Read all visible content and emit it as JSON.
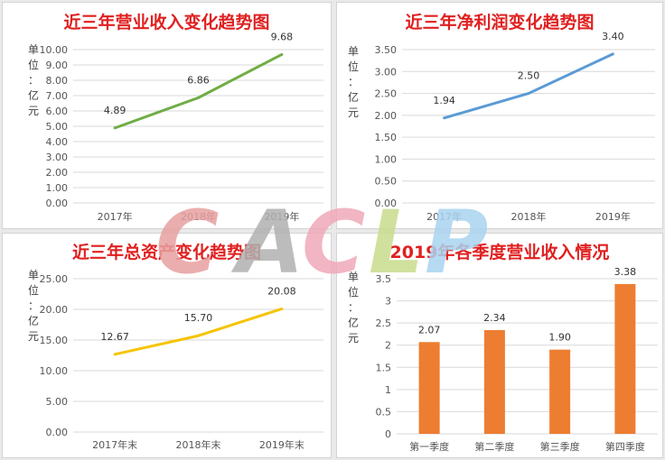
{
  "chart_data": [
    {
      "type": "line",
      "title": "近三年营业收入变化趋势图",
      "ylabel": "单位：亿元",
      "categories": [
        "2017年",
        "2018年",
        "2019年"
      ],
      "values": [
        4.89,
        6.86,
        9.68
      ],
      "value_labels": [
        "4.89",
        "6.86",
        "9.68"
      ],
      "ylim": [
        0,
        10
      ],
      "yticks": [
        "0.00",
        "1.00",
        "2.00",
        "3.00",
        "4.00",
        "5.00",
        "6.00",
        "7.00",
        "8.00",
        "9.00",
        "10.00"
      ],
      "color": "#70ad47",
      "grid": true
    },
    {
      "type": "line",
      "title": "近三年净利润变化趋势图",
      "ylabel": "单位：亿元",
      "categories": [
        "2017年",
        "2018年",
        "2019年"
      ],
      "values": [
        1.94,
        2.5,
        3.4
      ],
      "value_labels": [
        "1.94",
        "2.50",
        "3.40"
      ],
      "ylim": [
        0,
        3.5
      ],
      "yticks": [
        "0.00",
        "0.50",
        "1.00",
        "1.50",
        "2.00",
        "2.50",
        "3.00",
        "3.50"
      ],
      "color": "#5b9bd5",
      "grid": true
    },
    {
      "type": "line",
      "title": "近三年总资产变化趋势图",
      "ylabel": "单位：亿元",
      "categories": [
        "2017年末",
        "2018年末",
        "2019年末"
      ],
      "values": [
        12.67,
        15.7,
        20.08
      ],
      "value_labels": [
        "12.67",
        "15.70",
        "20.08"
      ],
      "ylim": [
        0,
        25
      ],
      "yticks": [
        "0.00",
        "5.00",
        "10.00",
        "15.00",
        "20.00",
        "25.00"
      ],
      "color": "#f5c400",
      "grid": true
    },
    {
      "type": "bar",
      "title": "2019年各季度营业收入情况",
      "ylabel": "单位：亿元",
      "categories": [
        "第一季度",
        "第二季度",
        "第三季度",
        "第四季度"
      ],
      "values": [
        2.07,
        2.34,
        1.9,
        3.38
      ],
      "value_labels": [
        "2.07",
        "2.34",
        "1.90",
        "3.38"
      ],
      "ylim": [
        0,
        3.5
      ],
      "yticks": [
        "0",
        "0.5",
        "1",
        "1.5",
        "2",
        "2.5",
        "3",
        "3.5"
      ],
      "color": "#ed7d31",
      "grid": true
    }
  ],
  "watermark": {
    "letters": [
      "C",
      "A",
      "C",
      "L",
      "P"
    ],
    "colors": [
      "#e8a0a0",
      "#b0b0b0",
      "#f0a8b8",
      "#c8dc8c",
      "#a8d4f0"
    ]
  }
}
